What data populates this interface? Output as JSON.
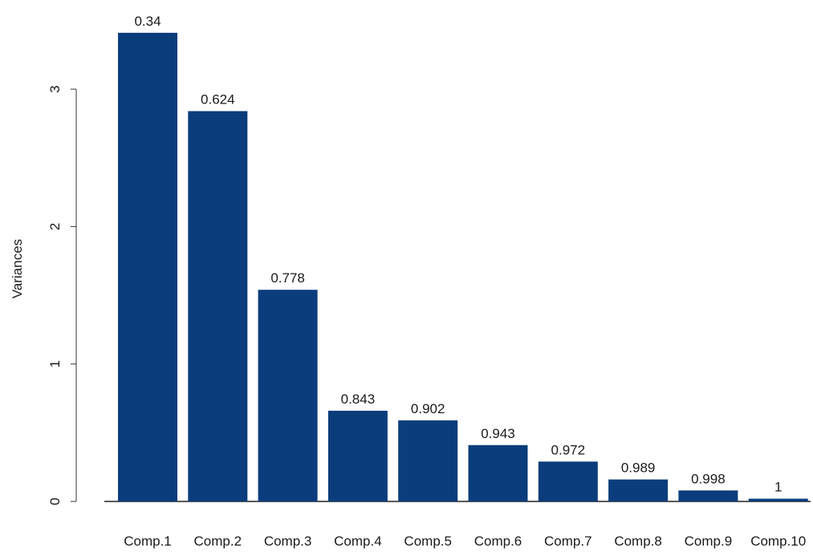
{
  "chart_data": {
    "type": "bar",
    "title": "",
    "xlabel": "",
    "ylabel": "Variances",
    "ylim": [
      0,
      3.45
    ],
    "yticks": [
      0,
      1,
      2,
      3
    ],
    "grid": false,
    "legend": "none",
    "bar_color": "#0b3d7c",
    "categories": [
      "Comp.1",
      "Comp.2",
      "Comp.3",
      "Comp.4",
      "Comp.5",
      "Comp.6",
      "Comp.7",
      "Comp.8",
      "Comp.9",
      "Comp.10"
    ],
    "series": [
      {
        "values": [
          3.41,
          2.84,
          1.54,
          0.66,
          0.59,
          0.41,
          0.29,
          0.16,
          0.08,
          0.02
        ],
        "labels": [
          "0.34",
          "0.624",
          "0.778",
          "0.843",
          "0.902",
          "0.943",
          "0.972",
          "0.989",
          "0.998",
          "1"
        ]
      }
    ]
  }
}
